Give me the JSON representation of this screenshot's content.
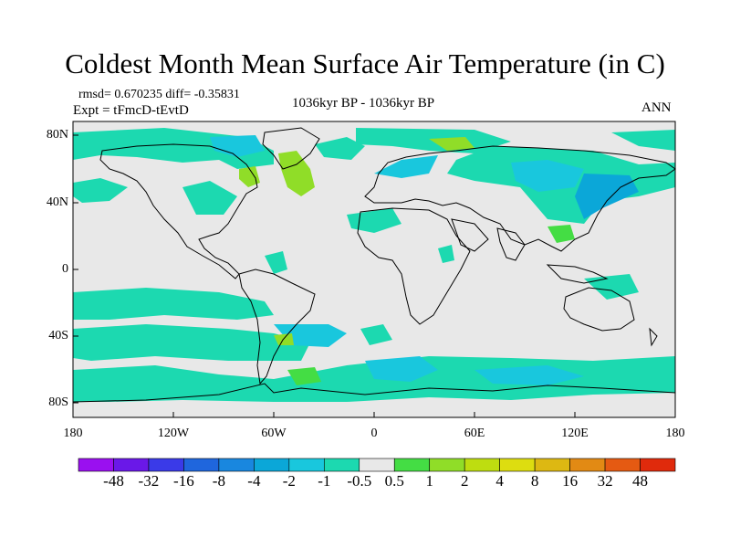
{
  "header": {
    "title": "Coldest Month Mean Surface Air Temperature (in C)",
    "stats": "rmsd= 0.670235 diff= -0.35831",
    "experiment": "Expt = tFmcD-tEvtD",
    "period": "1036kyr BP - 1036kyr BP",
    "season": "ANN"
  },
  "map": {
    "projection": "cylindrical equidistant",
    "lon_range": [
      -180,
      180
    ],
    "lat_range": [
      -90,
      90
    ],
    "lat_labels": [
      "80N",
      "40N",
      "0",
      "40S",
      "80S"
    ],
    "lon_labels": [
      "180",
      "120W",
      "60W",
      "0",
      "60E",
      "120E",
      "180"
    ],
    "background_color": "#e8e8e8",
    "coastline_color": "#000000",
    "features": [
      "Mostly near-zero difference (-0.5 to 0.5) over land and ocean",
      "Cooling (-0.5 to -2) bands across North Atlantic, northern Eurasia, North Pacific and Southern Ocean",
      "Warming (0.5 to 2) patches near Greenland, Labrador Sea and North Atlantic sector"
    ]
  },
  "colorbar": {
    "labels": [
      "-48",
      "-32",
      "-16",
      "-8",
      "-4",
      "-2",
      "-1",
      "-0.5",
      "0.5",
      "1",
      "2",
      "4",
      "8",
      "16",
      "32",
      "48"
    ],
    "colors": [
      "#9a10f0",
      "#6a18e8",
      "#3a3ae8",
      "#1f66dd",
      "#1987df",
      "#0ba7d8",
      "#19c7dd",
      "#1cd9b0",
      "#e8e8e8",
      "#44dd44",
      "#90dd28",
      "#bedd10",
      "#dddd10",
      "#ddb812",
      "#e28a14",
      "#e55a12",
      "#e02a0c"
    ]
  }
}
